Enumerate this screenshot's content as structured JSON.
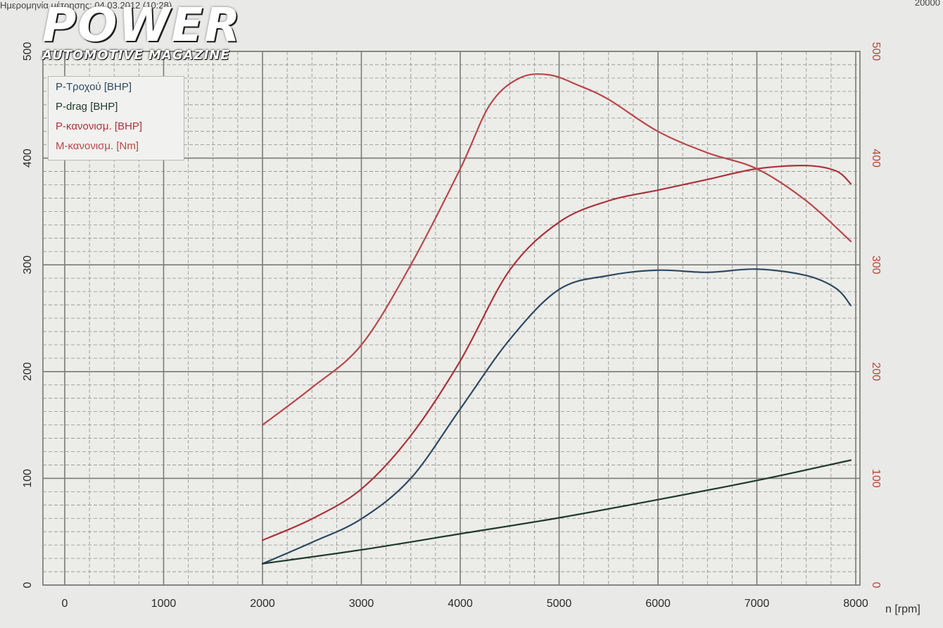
{
  "header": {
    "left_text": "Ημερομηνία μέτρησης: 04.03.2012 (10:28)",
    "right_text": "20000"
  },
  "logo": {
    "title": "POWER",
    "subtitle": "AUTOMOTIVE MAGAZINE"
  },
  "colors": {
    "wheel_power": "#2f4a62",
    "drag_power": "#1f3a2c",
    "corrected_power": "#a9343a",
    "torque": "#b8474a",
    "grid": "#8f8f8c",
    "right_axis_text": "#b24a3c"
  },
  "chart_data": {
    "type": "line",
    "title": "",
    "xlabel": "n [rpm]",
    "ylabel": "",
    "xlim": [
      0,
      8000
    ],
    "ylim": [
      0,
      500
    ],
    "y2lim": [
      0,
      500
    ],
    "grid": true,
    "legend_position": "top-left",
    "x_ticks": [
      "0",
      "1000",
      "2000",
      "3000",
      "4000",
      "5000",
      "6000",
      "7000",
      "8000"
    ],
    "y_ticks": [
      "0",
      "100",
      "200",
      "300",
      "400",
      "500"
    ],
    "y2_ticks": [
      "0",
      "100",
      "200",
      "300",
      "400",
      "500"
    ],
    "series": [
      {
        "name": "P-Τροχού [BHP]",
        "color": "#2f4a62",
        "x": [
          2000,
          2500,
          3000,
          3500,
          4000,
          4500,
          5000,
          5500,
          6000,
          6500,
          7000,
          7500,
          7800,
          7950
        ],
        "y": [
          20,
          40,
          62,
          100,
          165,
          230,
          277,
          290,
          295,
          293,
          296,
          290,
          278,
          262
        ]
      },
      {
        "name": "P-drag [BHP]",
        "color": "#1f3a2c",
        "x": [
          2000,
          3000,
          4000,
          5000,
          6000,
          7000,
          7950
        ],
        "y": [
          20,
          33,
          48,
          63,
          80,
          98,
          117
        ]
      },
      {
        "name": "P-κανονισμ. [BHP]",
        "color": "#a9343a",
        "x": [
          2000,
          2500,
          3000,
          3500,
          4000,
          4500,
          5000,
          5500,
          6000,
          6500,
          7000,
          7500,
          7800,
          7950
        ],
        "y": [
          42,
          62,
          90,
          140,
          210,
          295,
          340,
          360,
          370,
          380,
          390,
          393,
          388,
          376
        ]
      },
      {
        "name": "M-κανονισμ. [Nm]",
        "color": "#b8474a",
        "x": [
          2000,
          2500,
          3000,
          3500,
          4000,
          4300,
          4600,
          4900,
          5200,
          5500,
          6000,
          6500,
          7000,
          7500,
          7950
        ],
        "y": [
          150,
          185,
          225,
          300,
          390,
          450,
          475,
          478,
          468,
          455,
          425,
          405,
          390,
          360,
          322
        ]
      }
    ]
  }
}
